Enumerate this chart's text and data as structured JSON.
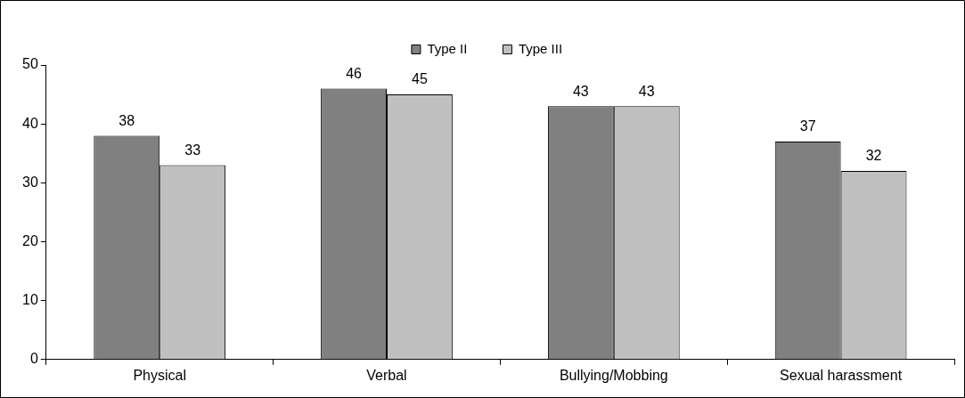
{
  "chart_data": {
    "type": "bar",
    "categories": [
      "Physical",
      "Verbal",
      "Bullying/Mobbing",
      "Sexual harassment"
    ],
    "series": [
      {
        "name": "Type II",
        "color": "#808080",
        "values": [
          38,
          46,
          43,
          37
        ]
      },
      {
        "name": "Type III",
        "color": "#c0c0c0",
        "values": [
          33,
          45,
          43,
          32
        ]
      }
    ],
    "ylim": [
      0,
      50
    ],
    "yticks": [
      0,
      10,
      20,
      30,
      40,
      50
    ],
    "grid": false,
    "legend": "top",
    "data_labels": true
  }
}
